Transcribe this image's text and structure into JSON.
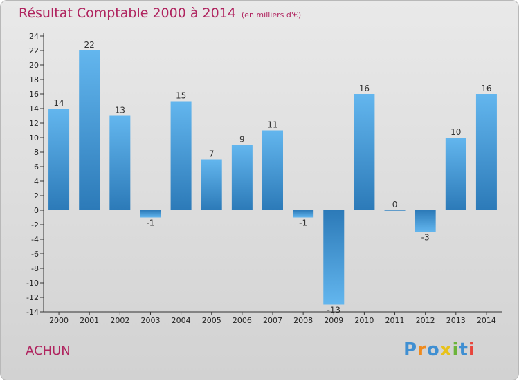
{
  "title": "Résultat Comptable 2000 à 2014",
  "subtitle": "(en milliers d'€)",
  "commune": "ACHUN",
  "brand": {
    "name": "Proxiti",
    "letters": [
      {
        "ch": "P",
        "color": "#3f8fd2"
      },
      {
        "ch": "r",
        "color": "#f08a1c"
      },
      {
        "ch": "o",
        "color": "#3f8fd2"
      },
      {
        "ch": "x",
        "color": "#e8c21a"
      },
      {
        "ch": "i",
        "color": "#6cb43a"
      },
      {
        "ch": "t",
        "color": "#3f8fd2"
      },
      {
        "ch": "i",
        "color": "#e8453c"
      }
    ]
  },
  "colors": {
    "title": "#b0245f",
    "bar_light": "#63b6ee",
    "bar_dark": "#2c7ab8"
  },
  "chart_data": {
    "type": "bar",
    "categories": [
      "2000",
      "2001",
      "2002",
      "2003",
      "2004",
      "2005",
      "2006",
      "2007",
      "2008",
      "2009",
      "2010",
      "2011",
      "2012",
      "2013",
      "2014"
    ],
    "values": [
      14,
      22,
      13,
      -1,
      15,
      7,
      9,
      11,
      -1,
      -13,
      16,
      0,
      -3,
      10,
      16
    ],
    "value_labels": [
      "14",
      "22",
      "13",
      "-1",
      "15",
      "7",
      "9",
      "11",
      "-1",
      "-13",
      "16",
      "0",
      "-3",
      "10",
      "16"
    ],
    "ylim": [
      -14,
      24
    ],
    "yticks": [
      -14,
      -12,
      -10,
      -8,
      -6,
      -4,
      -2,
      0,
      2,
      4,
      6,
      8,
      10,
      12,
      14,
      16,
      18,
      20,
      22,
      24
    ],
    "grid": false,
    "xlabel": "",
    "ylabel": ""
  }
}
